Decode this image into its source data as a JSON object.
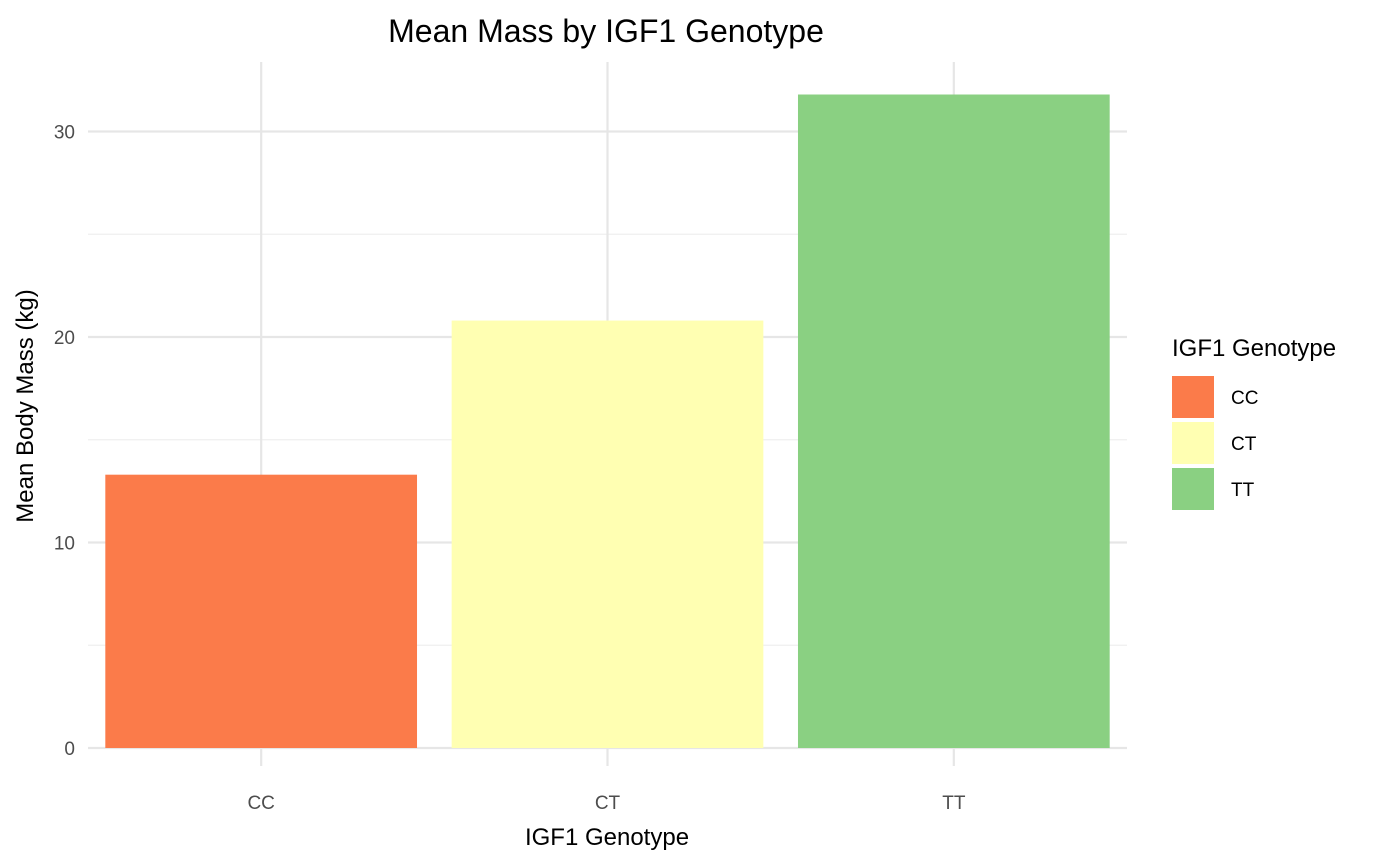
{
  "chart_data": {
    "type": "bar",
    "title": "Mean Mass by IGF1 Genotype",
    "xlabel": "IGF1 Genotype",
    "ylabel": "Mean Body Mass (kg)",
    "categories": [
      "CC",
      "CT",
      "TT"
    ],
    "values": [
      13.3,
      20.8,
      31.8
    ],
    "colors": [
      "#fb7b4a",
      "#ffffb2",
      "#8ad082"
    ],
    "ylim": [
      0,
      33.4
    ],
    "yticks": [
      0,
      10,
      20,
      30
    ],
    "yticks_minor": [
      5,
      15,
      25
    ],
    "grid": true,
    "legend": {
      "title": "IGF1 Genotype",
      "position": "right",
      "entries": [
        "CC",
        "CT",
        "TT"
      ]
    }
  }
}
